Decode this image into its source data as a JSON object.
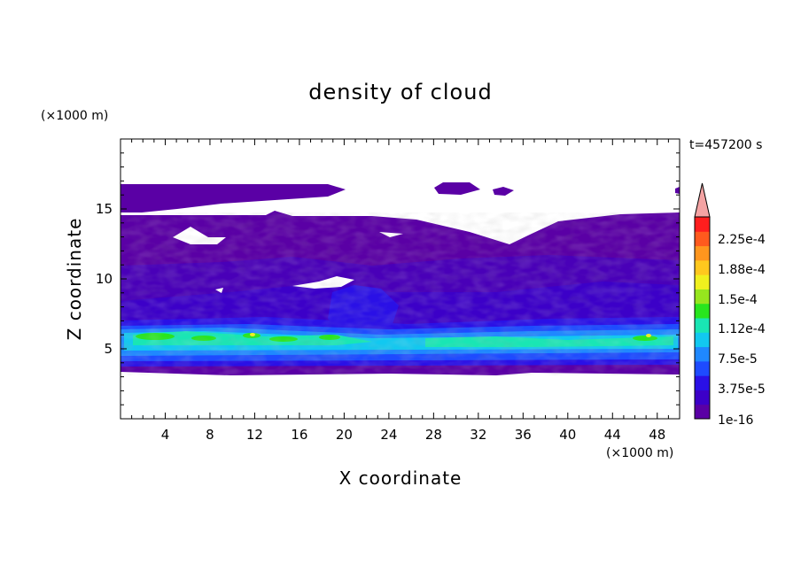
{
  "chart_data": {
    "type": "heatmap",
    "title": "density of cloud",
    "time_label": "t=457200 s",
    "xlabel": "X coordinate",
    "ylabel": "Z coordinate",
    "x_unit": "(×1000 m)",
    "z_unit": "(×1000 m)",
    "xlim": [
      0,
      50
    ],
    "zlim": [
      0,
      20
    ],
    "x_ticks": [
      4,
      8,
      12,
      16,
      20,
      24,
      28,
      32,
      36,
      40,
      44,
      48
    ],
    "z_ticks": [
      5,
      10,
      15
    ],
    "colorbar": {
      "min": 1e-16,
      "max": 0.00025,
      "labels": [
        "2.25e-4",
        "1.88e-4",
        "1.5e-4",
        "1.12e-4",
        "7.5e-5",
        "3.75e-5",
        "1e-16"
      ],
      "colors": [
        "#5a00a5",
        "#3c00c8",
        "#2a10e6",
        "#1e4bff",
        "#1f88ff",
        "#12c8f0",
        "#19e6b4",
        "#28e61e",
        "#96e61e",
        "#f0f01e",
        "#ffc81e",
        "#ff961e",
        "#ff5a1e",
        "#ff1e1e"
      ],
      "overflow_color": "#f4a3a3"
    }
  }
}
